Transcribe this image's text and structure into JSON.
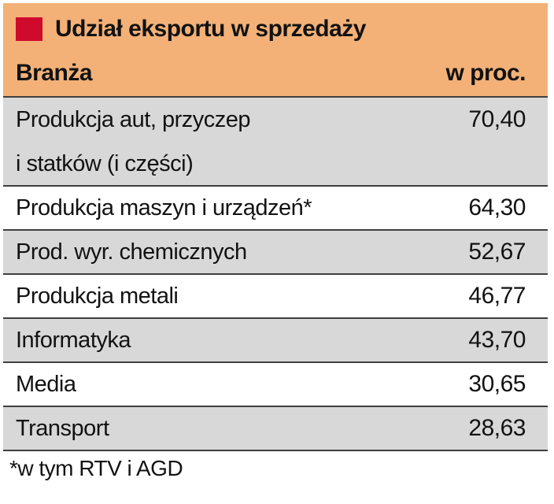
{
  "chart_data": {
    "type": "table",
    "title": "Udział eksportu w sprzedaży",
    "columns": [
      "Branża",
      "w proc."
    ],
    "rows": [
      {
        "label": "Produkcja aut, przyczep",
        "label2": "i statków (i części)",
        "value": "70,40",
        "value_num": 70.4
      },
      {
        "label": "Produkcja maszyn i urządzeń*",
        "value": "64,30",
        "value_num": 64.3
      },
      {
        "label": "Prod. wyr. chemicznych",
        "value": "52,67",
        "value_num": 52.67
      },
      {
        "label": "Produkcja metali",
        "value": "46,77",
        "value_num": 46.77
      },
      {
        "label": "Informatyka",
        "value": "43,70",
        "value_num": 43.7
      },
      {
        "label": "Media",
        "value": "30,65",
        "value_num": 30.65
      },
      {
        "label": "Transport",
        "value": "28,63",
        "value_num": 28.63
      }
    ],
    "footnote": "*w tym RTV i AGD",
    "legend_position": "none",
    "grid": "horizontal-rules"
  },
  "colors": {
    "accent": "#cf0a2c",
    "header_bg": "#f3b177",
    "row_alt_bg": "#d8d8d8",
    "line": "#3f3f3f",
    "text": "#121212"
  }
}
